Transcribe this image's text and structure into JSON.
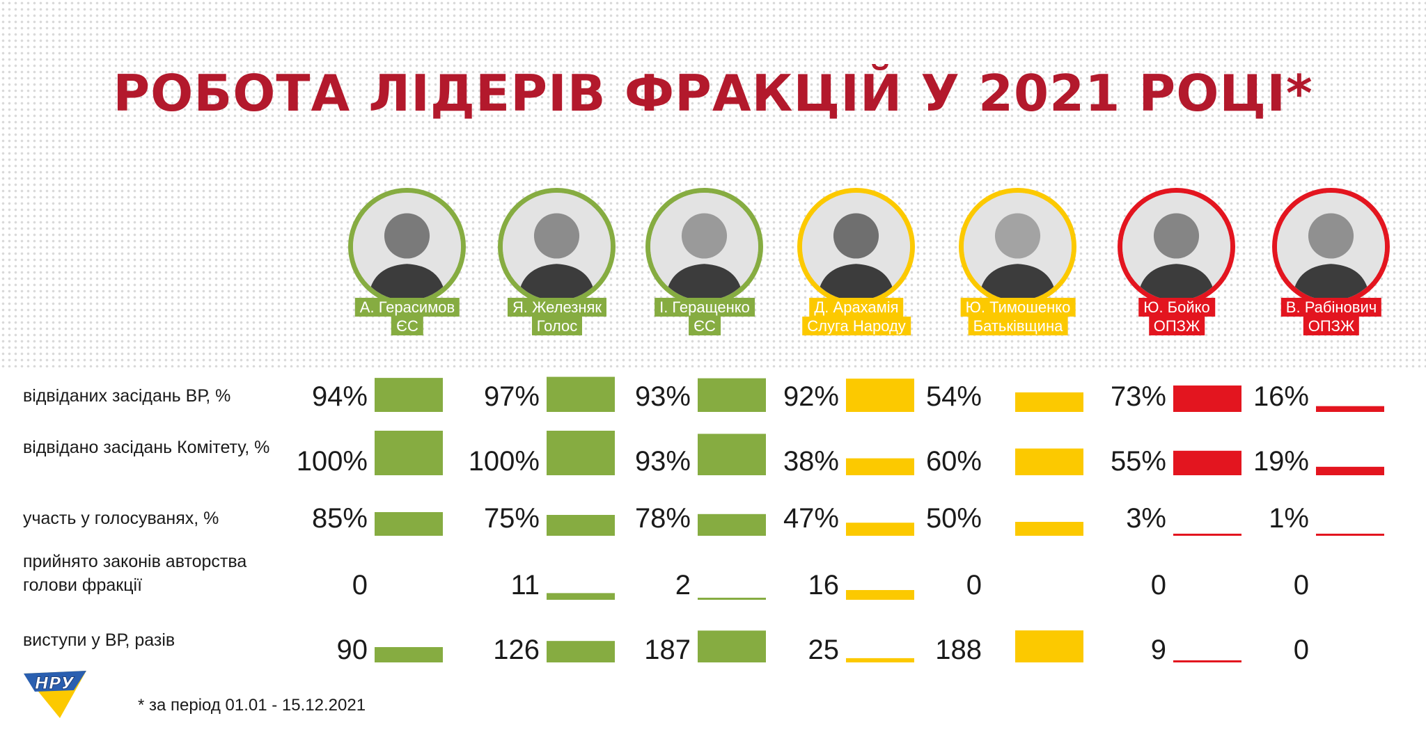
{
  "title": "РОБОТА ЛІДЕРІВ ФРАКЦІЙ У 2021 РОЦІ*",
  "footnote": "* за період 01.01 - 15.12.2021",
  "logo_text": "НРУ",
  "colors": {
    "green": "#86ac41",
    "yellow": "#fcc900",
    "red": "#e3151f",
    "title": "#b3192c"
  },
  "leaders": [
    {
      "name": "А. Герасимов",
      "faction": "ЄС",
      "color": "green"
    },
    {
      "name": "Я. Железняк",
      "faction": "Голос",
      "color": "green"
    },
    {
      "name": "І. Геращенко",
      "faction": "ЄС",
      "color": "green"
    },
    {
      "name": "Д. Арахамія",
      "faction": "Слуга Народу",
      "color": "yellow"
    },
    {
      "name": "Ю. Тимошенко",
      "faction": "Батьківщина",
      "color": "yellow"
    },
    {
      "name": "Ю. Бойко",
      "faction": "ОПЗЖ",
      "color": "red"
    },
    {
      "name": "В. Рабінович",
      "faction": "ОПЗЖ",
      "color": "red"
    }
  ],
  "chart_data": {
    "type": "table",
    "bars": "horizontal-height-encoded",
    "rows": [
      {
        "label": "відвіданих засідань ВР, %",
        "display": [
          "94%",
          "97%",
          "93%",
          "92%",
          "54%",
          "73%",
          "16%"
        ],
        "values": [
          94,
          97,
          93,
          92,
          54,
          73,
          16
        ],
        "max": 100
      },
      {
        "label": "відвідано засідань Комітету, %",
        "display": [
          "100%",
          "100%",
          "93%",
          "38%",
          "60%",
          "55%",
          "19%"
        ],
        "values": [
          100,
          100,
          93,
          38,
          60,
          55,
          19
        ],
        "max": 100
      },
      {
        "label": "участь у голосуванях, %",
        "display": [
          "85%",
          "75%",
          "78%",
          "47%",
          "50%",
          "3%",
          "1%"
        ],
        "values": [
          85,
          75,
          78,
          47,
          50,
          3,
          1
        ],
        "max": 100
      },
      {
        "label": "прийнято законів авторства голови фракції",
        "display": [
          "0",
          "11",
          "2",
          "16",
          "0",
          "0",
          "0"
        ],
        "values": [
          0,
          11,
          2,
          16,
          0,
          0,
          0
        ],
        "max": 16
      },
      {
        "label": "виступи у ВР, разів",
        "display": [
          "90",
          "126",
          "187",
          "25",
          "188",
          "9",
          "0"
        ],
        "values": [
          90,
          126,
          187,
          25,
          188,
          9,
          0
        ],
        "max": 188
      }
    ]
  }
}
